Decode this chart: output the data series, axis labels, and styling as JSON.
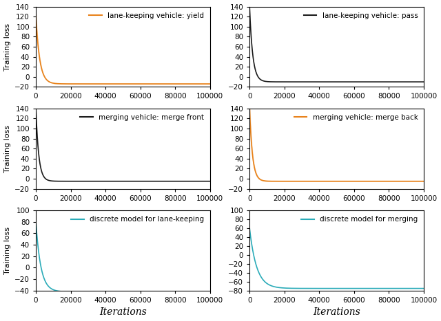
{
  "subplots": [
    {
      "label": "lane-keeping vehicle: yield",
      "color": "#E8821A",
      "start": 120,
      "converge": -14,
      "decay_rate": 0.00045,
      "ylim": [
        -20,
        140
      ],
      "yticks": [
        -20,
        0,
        20,
        40,
        60,
        80,
        100,
        120,
        140
      ],
      "has_shading": true,
      "shade_scale": 5,
      "shade_decay": 0.00045,
      "row": 0,
      "col": 0,
      "n_iter": 100000
    },
    {
      "label": "lane-keeping vehicle: pass",
      "color": "#1a1a1a",
      "start": 140,
      "converge": -10,
      "decay_rate": 0.00055,
      "ylim": [
        -20,
        140
      ],
      "yticks": [
        -20,
        0,
        20,
        40,
        60,
        80,
        100,
        120,
        140
      ],
      "has_shading": false,
      "shade_scale": 0,
      "shade_decay": 0,
      "row": 0,
      "col": 1,
      "n_iter": 100000
    },
    {
      "label": "merging vehicle: merge front",
      "color": "#1a1a1a",
      "start": 140,
      "converge": -5,
      "decay_rate": 0.0006,
      "ylim": [
        -20,
        140
      ],
      "yticks": [
        -20,
        0,
        20,
        40,
        60,
        80,
        100,
        120,
        140
      ],
      "has_shading": false,
      "shade_scale": 0,
      "shade_decay": 0,
      "row": 1,
      "col": 0,
      "n_iter": 100000
    },
    {
      "label": "merging vehicle: merge back",
      "color": "#E8821A",
      "start": 140,
      "converge": -5,
      "decay_rate": 0.0006,
      "ylim": [
        -20,
        140
      ],
      "yticks": [
        -20,
        0,
        20,
        40,
        60,
        80,
        100,
        120,
        140
      ],
      "has_shading": true,
      "shade_scale": 6,
      "shade_decay": 0.0004,
      "row": 1,
      "col": 1,
      "n_iter": 100000
    },
    {
      "label": "discrete model for lane-keeping",
      "color": "#2AABB8",
      "start": 80,
      "converge": -42,
      "decay_rate": 0.00035,
      "ylim": [
        -40,
        100
      ],
      "yticks": [
        -40,
        -20,
        0,
        20,
        40,
        60,
        80,
        100
      ],
      "has_shading": false,
      "shade_scale": 0,
      "shade_decay": 0,
      "row": 2,
      "col": 0,
      "n_iter": 60000
    },
    {
      "label": "discrete model for merging",
      "color": "#2AABB8",
      "start": 60,
      "converge": -75,
      "decay_rate": 0.00025,
      "ylim": [
        -80,
        100
      ],
      "yticks": [
        -80,
        -60,
        -40,
        -20,
        0,
        20,
        40,
        60,
        80,
        100
      ],
      "has_shading": false,
      "shade_scale": 0,
      "shade_decay": 0,
      "row": 2,
      "col": 1,
      "n_iter": 100000
    }
  ],
  "xlabel": "Iterations",
  "ylabel": "Training loss",
  "xlim": [
    0,
    100000
  ],
  "xticks": [
    0,
    20000,
    40000,
    60000,
    80000,
    100000
  ],
  "figsize": [
    6.4,
    4.67
  ],
  "dpi": 100
}
